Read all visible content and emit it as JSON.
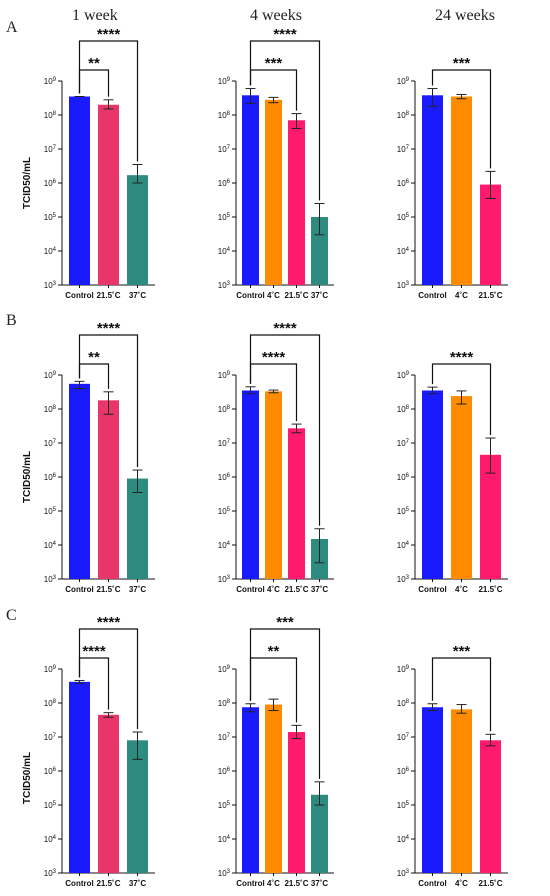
{
  "columns": [
    "1 week",
    "4 weeks",
    "24 weeks"
  ],
  "rows": [
    "A",
    "B",
    "C"
  ],
  "ylabel": "TCID50/mL",
  "colors": {
    "Control": "#1a1aff",
    "4˚C": "#ff8c00",
    "21.5˚C_1w": "#e8366a",
    "21.5˚C": "#ff1a6e",
    "37˚C": "#2e8b80"
  },
  "chart_data": [
    {
      "type": "bar",
      "row": "A",
      "column": "1 week",
      "scale": "log",
      "ylim": [
        1000,
        1000000000
      ],
      "categories": [
        "Control",
        "21.5˚C",
        "37˚C"
      ],
      "values": [
        350000000,
        200000000,
        1700000
      ],
      "errors": [
        [
          350000000,
          350000000
        ],
        [
          150000000,
          280000000
        ],
        [
          1000000,
          3500000
        ]
      ],
      "colors": [
        "Control",
        "21.5˚C_1w",
        "37˚C"
      ],
      "annotations": [
        {
          "from": 0,
          "to": 1,
          "label": "**"
        },
        {
          "from": 0,
          "to": 2,
          "label": "****"
        }
      ]
    },
    {
      "type": "bar",
      "row": "A",
      "column": "4 weeks",
      "scale": "log",
      "ylim": [
        1000,
        1000000000
      ],
      "categories": [
        "Control",
        "4˚C",
        "21.5˚C",
        "37˚C"
      ],
      "values": [
        380000000,
        280000000,
        70000000,
        100000
      ],
      "errors": [
        [
          220000000,
          600000000
        ],
        [
          230000000,
          330000000
        ],
        [
          40000000,
          110000000
        ],
        [
          30000,
          250000
        ]
      ],
      "colors": [
        "Control",
        "4˚C",
        "21.5˚C",
        "37˚C"
      ],
      "annotations": [
        {
          "from": 0,
          "to": 2,
          "label": "***"
        },
        {
          "from": 0,
          "to": 3,
          "label": "****"
        }
      ]
    },
    {
      "type": "bar",
      "row": "A",
      "column": "24 weeks",
      "scale": "log",
      "ylim": [
        1000,
        1000000000
      ],
      "categories": [
        "Control",
        "4˚C",
        "21.5˚C"
      ],
      "values": [
        380000000,
        350000000,
        900000
      ],
      "errors": [
        [
          180000000,
          600000000
        ],
        [
          300000000,
          400000000
        ],
        [
          350000,
          2200000
        ]
      ],
      "colors": [
        "Control",
        "4˚C",
        "21.5˚C"
      ],
      "annotations": [
        {
          "from": 0,
          "to": 2,
          "label": "***"
        }
      ]
    },
    {
      "type": "bar",
      "row": "B",
      "column": "1 week",
      "scale": "log",
      "ylim": [
        1000,
        1000000000
      ],
      "categories": [
        "Control",
        "21.5˚C",
        "37˚C"
      ],
      "values": [
        550000000,
        180000000,
        900000
      ],
      "errors": [
        [
          400000000,
          650000000
        ],
        [
          70000000,
          320000000
        ],
        [
          350000,
          1600000
        ]
      ],
      "colors": [
        "Control",
        "21.5˚C_1w",
        "37˚C"
      ],
      "annotations": [
        {
          "from": 0,
          "to": 1,
          "label": "**"
        },
        {
          "from": 0,
          "to": 2,
          "label": "****"
        }
      ]
    },
    {
      "type": "bar",
      "row": "B",
      "column": "4 weeks",
      "scale": "log",
      "ylim": [
        1000,
        1000000000
      ],
      "categories": [
        "Control",
        "4˚C",
        "21.5˚C",
        "37˚C"
      ],
      "values": [
        350000000,
        330000000,
        27000000,
        15000
      ],
      "errors": [
        [
          280000000,
          450000000
        ],
        [
          300000000,
          360000000
        ],
        [
          20000000,
          36000000
        ],
        [
          3000,
          30000
        ]
      ],
      "colors": [
        "Control",
        "4˚C",
        "21.5˚C",
        "37˚C"
      ],
      "annotations": [
        {
          "from": 0,
          "to": 2,
          "label": "****"
        },
        {
          "from": 0,
          "to": 3,
          "label": "****"
        }
      ]
    },
    {
      "type": "bar",
      "row": "B",
      "column": "24 weeks",
      "scale": "log",
      "ylim": [
        1000,
        1000000000
      ],
      "categories": [
        "Control",
        "4˚C",
        "21.5˚C"
      ],
      "values": [
        350000000,
        240000000,
        4500000
      ],
      "errors": [
        [
          280000000,
          440000000
        ],
        [
          140000000,
          340000000
        ],
        [
          1300000,
          14000000
        ]
      ],
      "colors": [
        "Control",
        "4˚C",
        "21.5˚C"
      ],
      "annotations": [
        {
          "from": 0,
          "to": 2,
          "label": "****"
        }
      ]
    },
    {
      "type": "bar",
      "row": "C",
      "column": "1 week",
      "scale": "log",
      "ylim": [
        1000,
        1000000000
      ],
      "categories": [
        "Control",
        "21.5˚C",
        "37˚C"
      ],
      "values": [
        420000000,
        45000000,
        8000000
      ],
      "errors": [
        [
          380000000,
          460000000
        ],
        [
          38000000,
          52000000
        ],
        [
          2200000,
          14000000
        ]
      ],
      "colors": [
        "Control",
        "21.5˚C_1w",
        "37˚C"
      ],
      "annotations": [
        {
          "from": 0,
          "to": 1,
          "label": "****"
        },
        {
          "from": 0,
          "to": 2,
          "label": "****"
        }
      ]
    },
    {
      "type": "bar",
      "row": "C",
      "column": "4 weeks",
      "scale": "log",
      "ylim": [
        1000,
        1000000000
      ],
      "categories": [
        "Control",
        "4˚C",
        "21.5˚C",
        "37˚C"
      ],
      "values": [
        75000000,
        90000000,
        14000000,
        200000
      ],
      "errors": [
        [
          55000000,
          95000000
        ],
        [
          60000000,
          130000000
        ],
        [
          9000000,
          22000000
        ],
        [
          100000,
          480000
        ]
      ],
      "colors": [
        "Control",
        "4˚C",
        "21.5˚C",
        "37˚C"
      ],
      "annotations": [
        {
          "from": 0,
          "to": 2,
          "label": "**"
        },
        {
          "from": 0,
          "to": 3,
          "label": "***"
        }
      ]
    },
    {
      "type": "bar",
      "row": "C",
      "column": "24 weeks",
      "scale": "log",
      "ylim": [
        1000,
        1000000000
      ],
      "categories": [
        "Control",
        "4˚C",
        "21.5˚C"
      ],
      "values": [
        75000000,
        65000000,
        8000000
      ],
      "errors": [
        [
          60000000,
          95000000
        ],
        [
          50000000,
          90000000
        ],
        [
          5500000,
          12000000
        ]
      ],
      "colors": [
        "Control",
        "4˚C",
        "21.5˚C"
      ],
      "annotations": [
        {
          "from": 0,
          "to": 2,
          "label": "***"
        }
      ]
    }
  ]
}
